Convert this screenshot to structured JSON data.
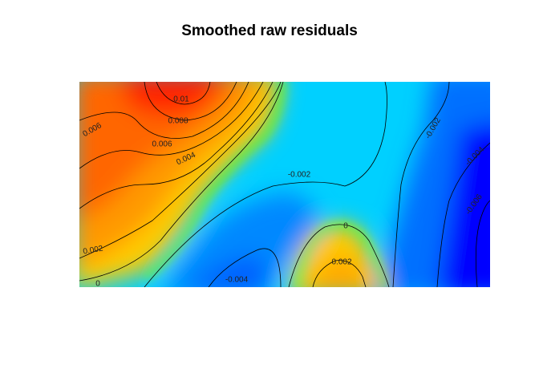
{
  "chart_data": {
    "type": "heatmap",
    "title": "Smoothed raw residuals",
    "xlabel": "",
    "ylabel": "",
    "axes_shown": false,
    "legend": "none",
    "color_scale": [
      "#0000ff",
      "#0099ff",
      "#00e5ff",
      "#ffee00",
      "#ff9900",
      "#ff2200"
    ],
    "contour_labels": [
      "0.01",
      "0.008",
      "0.006",
      "0.004",
      "0.006",
      "0.002",
      "0",
      "-0.002",
      "0",
      "0.002",
      "-0.004",
      "-0.002",
      "-0.004",
      "-0.006"
    ],
    "contour_levels": [
      -0.006,
      -0.004,
      -0.002,
      0,
      0.002,
      0.004,
      0.006,
      0.008,
      0.01
    ]
  }
}
